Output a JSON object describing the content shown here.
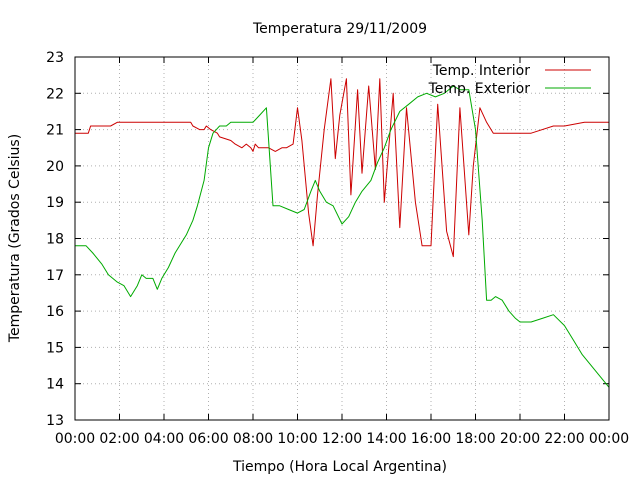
{
  "chart_data": {
    "type": "line",
    "title": "Temperatura 29/11/2009",
    "xlabel": "Tiempo (Hora Local Argentina)",
    "ylabel": "Temperatura (Grados Celsius)",
    "xlim": [
      0,
      24
    ],
    "ylim": [
      13,
      23
    ],
    "grid": true,
    "legend_position": "top-right",
    "x_tick_labels": [
      "00:00",
      "02:00",
      "04:00",
      "06:00",
      "08:00",
      "10:00",
      "12:00",
      "14:00",
      "16:00",
      "18:00",
      "20:00",
      "22:00",
      "00:00"
    ],
    "y_tick_labels": [
      "13",
      "14",
      "15",
      "16",
      "17",
      "18",
      "19",
      "20",
      "21",
      "22",
      "23"
    ],
    "series": [
      {
        "name": "Temp. Interior",
        "color": "#cc0000",
        "x": [
          0,
          0.6,
          0.7,
          1.6,
          1.9,
          2.5,
          3.5,
          4.5,
          5.2,
          5.3,
          5.6,
          5.8,
          5.9,
          6.1,
          6.4,
          6.5,
          7.0,
          7.2,
          7.5,
          7.7,
          7.9,
          8.0,
          8.1,
          8.25,
          8.7,
          9.0,
          9.3,
          9.5,
          9.8,
          10.0,
          10.2,
          10.5,
          10.7,
          10.9,
          11.2,
          11.5,
          11.7,
          11.9,
          12.2,
          12.4,
          12.7,
          12.9,
          13.2,
          13.5,
          13.7,
          13.9,
          14.3,
          14.6,
          14.9,
          15.3,
          15.6,
          16.0,
          16.3,
          16.7,
          17.0,
          17.3,
          17.7,
          17.9,
          18.2,
          18.5,
          18.8,
          19.1,
          19.3,
          19.6,
          19.9,
          20.5,
          21.5,
          21.8,
          22.0,
          22.9,
          23.0,
          24.0
        ],
        "y": [
          20.9,
          20.9,
          21.1,
          21.1,
          21.2,
          21.2,
          21.2,
          21.2,
          21.2,
          21.1,
          21.0,
          21.0,
          21.1,
          21.0,
          20.9,
          20.8,
          20.7,
          20.6,
          20.5,
          20.6,
          20.5,
          20.4,
          20.6,
          20.5,
          20.5,
          20.4,
          20.5,
          20.5,
          20.6,
          21.6,
          20.7,
          18.7,
          17.8,
          19.2,
          21.0,
          22.4,
          20.2,
          21.4,
          22.4,
          19.2,
          22.1,
          19.8,
          22.2,
          19.9,
          22.4,
          19.0,
          22.0,
          18.3,
          21.6,
          19.0,
          17.8,
          17.8,
          21.7,
          18.2,
          17.5,
          21.6,
          18.1,
          20.0,
          21.6,
          21.2,
          20.9,
          20.9,
          20.9,
          20.9,
          20.9,
          20.9,
          21.1,
          21.1,
          21.1,
          21.2,
          21.2,
          21.2
        ]
      },
      {
        "name": "Temp. Exterior",
        "color": "#00aa00",
        "x": [
          0,
          0.5,
          0.8,
          1.2,
          1.5,
          1.9,
          2.2,
          2.5,
          2.8,
          3.0,
          3.2,
          3.5,
          3.7,
          3.9,
          4.2,
          4.5,
          4.8,
          5.0,
          5.3,
          5.5,
          5.8,
          6.0,
          6.2,
          6.5,
          6.8,
          7.0,
          7.3,
          7.6,
          8.0,
          8.3,
          8.6,
          8.9,
          9.2,
          9.6,
          10.0,
          10.3,
          10.6,
          10.8,
          11.0,
          11.3,
          11.6,
          12.0,
          12.3,
          12.6,
          12.9,
          13.3,
          13.6,
          13.9,
          14.2,
          14.6,
          15.0,
          15.4,
          15.8,
          16.2,
          16.6,
          17.0,
          17.3,
          17.7,
          18.0,
          18.3,
          18.5,
          18.7,
          18.9,
          19.2,
          19.5,
          19.8,
          20.0,
          20.5,
          21.0,
          21.5,
          22.0,
          22.4,
          22.8,
          23.2,
          23.6,
          24.0
        ],
        "y": [
          17.8,
          17.8,
          17.6,
          17.3,
          17.0,
          16.8,
          16.7,
          16.4,
          16.7,
          17.0,
          16.9,
          16.9,
          16.6,
          16.9,
          17.2,
          17.6,
          17.9,
          18.1,
          18.5,
          18.9,
          19.6,
          20.5,
          20.9,
          21.1,
          21.1,
          21.2,
          21.2,
          21.2,
          21.2,
          21.4,
          21.6,
          18.9,
          18.9,
          18.8,
          18.7,
          18.8,
          19.3,
          19.6,
          19.3,
          19.0,
          18.9,
          18.4,
          18.6,
          19.0,
          19.3,
          19.6,
          20.1,
          20.5,
          21.0,
          21.5,
          21.7,
          21.9,
          22.0,
          21.9,
          22.0,
          22.2,
          22.1,
          22.1,
          21.0,
          18.5,
          16.3,
          16.3,
          16.4,
          16.3,
          16.0,
          15.8,
          15.7,
          15.7,
          15.8,
          15.9,
          15.6,
          15.2,
          14.8,
          14.5,
          14.2,
          13.9
        ]
      }
    ]
  }
}
